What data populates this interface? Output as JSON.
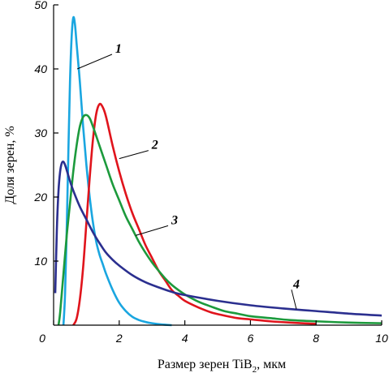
{
  "chart_data": {
    "type": "line",
    "xlabel_main": "Размер зерен TiB",
    "xlabel_sub": "2",
    "xlabel_tail": ", мкм",
    "ylabel": "Доля зерен, %",
    "xlim": [
      0,
      10
    ],
    "ylim": [
      0,
      50
    ],
    "xticks": [
      0,
      2,
      4,
      6,
      8,
      10
    ],
    "yticks": [
      10,
      20,
      30,
      40,
      50
    ],
    "grid": false,
    "series": [
      {
        "name": "1",
        "color": "#1aa6e0",
        "points": [
          [
            0.3,
            0
          ],
          [
            0.35,
            5
          ],
          [
            0.4,
            15
          ],
          [
            0.45,
            27
          ],
          [
            0.5,
            38
          ],
          [
            0.55,
            45
          ],
          [
            0.6,
            48
          ],
          [
            0.65,
            47
          ],
          [
            0.7,
            44
          ],
          [
            0.8,
            38
          ],
          [
            0.9,
            31
          ],
          [
            1.0,
            25
          ],
          [
            1.1,
            20
          ],
          [
            1.2,
            16
          ],
          [
            1.3,
            13
          ],
          [
            1.4,
            11
          ],
          [
            1.5,
            9.5
          ],
          [
            1.6,
            8
          ],
          [
            1.8,
            5.5
          ],
          [
            2.0,
            3.5
          ],
          [
            2.2,
            2.2
          ],
          [
            2.4,
            1.3
          ],
          [
            2.6,
            0.8
          ],
          [
            2.8,
            0.5
          ],
          [
            3.0,
            0.3
          ],
          [
            3.3,
            0.1
          ],
          [
            3.6,
            0
          ]
        ]
      },
      {
        "name": "2",
        "color": "#e0141c",
        "points": [
          [
            0.6,
            0
          ],
          [
            0.7,
            1
          ],
          [
            0.8,
            4
          ],
          [
            0.9,
            9
          ],
          [
            1.0,
            16
          ],
          [
            1.1,
            23
          ],
          [
            1.2,
            29
          ],
          [
            1.3,
            33
          ],
          [
            1.4,
            34.5
          ],
          [
            1.5,
            34
          ],
          [
            1.6,
            32.5
          ],
          [
            1.8,
            28
          ],
          [
            2.0,
            24
          ],
          [
            2.2,
            20.5
          ],
          [
            2.4,
            17.5
          ],
          [
            2.6,
            15
          ],
          [
            2.8,
            12.5
          ],
          [
            3.0,
            10.5
          ],
          [
            3.2,
            8.5
          ],
          [
            3.4,
            7
          ],
          [
            3.6,
            5.5
          ],
          [
            3.8,
            4.6
          ],
          [
            4.0,
            3.8
          ],
          [
            4.4,
            2.8
          ],
          [
            4.8,
            2
          ],
          [
            5.2,
            1.5
          ],
          [
            5.6,
            1.1
          ],
          [
            6.0,
            0.9
          ],
          [
            6.6,
            0.6
          ],
          [
            7.2,
            0.4
          ],
          [
            8.0,
            0.2
          ]
        ]
      },
      {
        "name": "3",
        "color": "#1c9a3c",
        "points": [
          [
            0.15,
            0
          ],
          [
            0.2,
            2
          ],
          [
            0.3,
            8
          ],
          [
            0.4,
            14
          ],
          [
            0.5,
            19
          ],
          [
            0.6,
            24
          ],
          [
            0.7,
            28
          ],
          [
            0.8,
            31
          ],
          [
            0.9,
            32.5
          ],
          [
            1.0,
            32.8
          ],
          [
            1.1,
            32.3
          ],
          [
            1.2,
            31
          ],
          [
            1.4,
            28
          ],
          [
            1.6,
            25
          ],
          [
            1.8,
            22
          ],
          [
            2.0,
            19.5
          ],
          [
            2.2,
            17
          ],
          [
            2.4,
            15
          ],
          [
            2.6,
            13
          ],
          [
            2.8,
            11.3
          ],
          [
            3.0,
            9.8
          ],
          [
            3.2,
            8.5
          ],
          [
            3.4,
            7.3
          ],
          [
            3.6,
            6.3
          ],
          [
            3.8,
            5.5
          ],
          [
            4.0,
            4.8
          ],
          [
            4.4,
            3.7
          ],
          [
            4.8,
            2.9
          ],
          [
            5.2,
            2.2
          ],
          [
            5.6,
            1.8
          ],
          [
            6.0,
            1.4
          ],
          [
            6.6,
            1.1
          ],
          [
            7.2,
            0.8
          ],
          [
            8.0,
            0.6
          ],
          [
            9.0,
            0.4
          ],
          [
            10.0,
            0.3
          ]
        ]
      },
      {
        "name": "4",
        "color": "#2b2f8f",
        "points": [
          [
            0.05,
            5
          ],
          [
            0.1,
            15
          ],
          [
            0.15,
            21
          ],
          [
            0.2,
            24
          ],
          [
            0.25,
            25.3
          ],
          [
            0.3,
            25.5
          ],
          [
            0.35,
            25
          ],
          [
            0.4,
            24.2
          ],
          [
            0.5,
            22.5
          ],
          [
            0.6,
            21
          ],
          [
            0.8,
            18.5
          ],
          [
            1.0,
            16.5
          ],
          [
            1.2,
            14.5
          ],
          [
            1.4,
            12.8
          ],
          [
            1.6,
            11.3
          ],
          [
            1.8,
            10.2
          ],
          [
            2.0,
            9.3
          ],
          [
            2.4,
            7.8
          ],
          [
            2.8,
            6.7
          ],
          [
            3.2,
            5.9
          ],
          [
            3.6,
            5.2
          ],
          [
            4.0,
            4.7
          ],
          [
            5.0,
            3.8
          ],
          [
            6.0,
            3.1
          ],
          [
            7.0,
            2.6
          ],
          [
            8.0,
            2.2
          ],
          [
            9.0,
            1.8
          ],
          [
            10.0,
            1.5
          ]
        ]
      }
    ],
    "callouts": [
      {
        "text": "1",
        "at": [
          0.72,
          40
        ]
      },
      {
        "text": "2",
        "at": [
          2.0,
          26
        ]
      },
      {
        "text": "3",
        "at": [
          2.5,
          14
        ]
      },
      {
        "text": "4",
        "at": [
          7.4,
          2.5
        ]
      }
    ]
  }
}
